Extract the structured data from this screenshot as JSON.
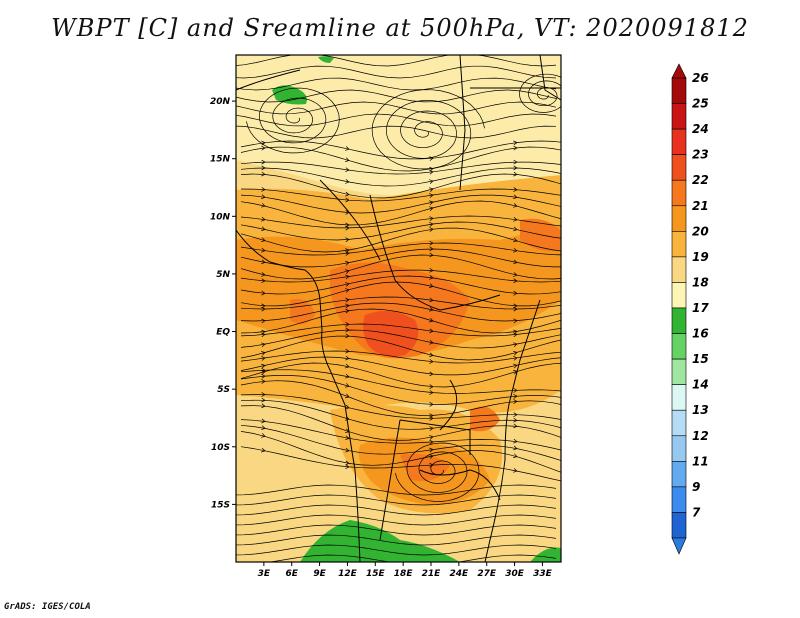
{
  "title": "WBPT [C] and Sreamline at 500hPa, VT: 2020091812",
  "credit": "GrADS: IGES/COLA",
  "map": {
    "lat_labels": [
      {
        "lat": 20,
        "label": "20N"
      },
      {
        "lat": 15,
        "label": "15N"
      },
      {
        "lat": 10,
        "label": "10N"
      },
      {
        "lat": 5,
        "label": "5N"
      },
      {
        "lat": 0,
        "label": "EQ"
      },
      {
        "lat": -5,
        "label": "5S"
      },
      {
        "lat": -10,
        "label": "10S"
      },
      {
        "lat": -15,
        "label": "15S"
      }
    ],
    "lon_labels": [
      {
        "lon": 3,
        "label": "3E"
      },
      {
        "lon": 6,
        "label": "6E"
      },
      {
        "lon": 9,
        "label": "9E"
      },
      {
        "lon": 12,
        "label": "12E"
      },
      {
        "lon": 15,
        "label": "15E"
      },
      {
        "lon": 18,
        "label": "18E"
      },
      {
        "lon": 21,
        "label": "21E"
      },
      {
        "lon": 24,
        "label": "24E"
      },
      {
        "lon": 27,
        "label": "27E"
      },
      {
        "lon": 30,
        "label": "30E"
      },
      {
        "lon": 33,
        "label": "33E"
      }
    ],
    "lon_range": [
      0,
      35
    ],
    "lat_range": [
      -20,
      24
    ]
  },
  "colorbar": {
    "levels": [
      {
        "label": "26",
        "color": "#a50a0a"
      },
      {
        "label": "25",
        "color": "#c81414"
      },
      {
        "label": "24",
        "color": "#e6321e"
      },
      {
        "label": "23",
        "color": "#f0501e"
      },
      {
        "label": "22",
        "color": "#f5781e"
      },
      {
        "label": "21",
        "color": "#f5961e"
      },
      {
        "label": "20",
        "color": "#f8b43c"
      },
      {
        "label": "19",
        "color": "#fad782"
      },
      {
        "label": "18",
        "color": "#fdf5b4"
      },
      {
        "label": "17",
        "color": "#32b432"
      },
      {
        "label": "16",
        "color": "#64d264"
      },
      {
        "label": "15",
        "color": "#a0e6a0"
      },
      {
        "label": "14",
        "color": "#dcf8f5"
      },
      {
        "label": "13",
        "color": "#b4dcf5"
      },
      {
        "label": "12",
        "color": "#96c8f0"
      },
      {
        "label": "11",
        "color": "#64aaf0"
      },
      {
        "label": "9",
        "color": "#3c8cf0"
      },
      {
        "label": "7",
        "color": "#1e64d2"
      }
    ],
    "bottom_color": "#2a7ae0"
  }
}
